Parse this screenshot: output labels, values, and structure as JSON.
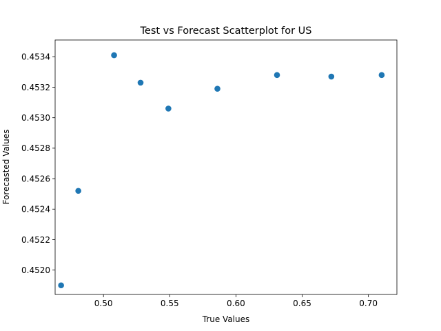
{
  "chart_data": {
    "type": "scatter",
    "title": "Test vs Forecast Scatterplot for US",
    "xlabel": "True Values",
    "ylabel": "Forecasted Values",
    "xlim": [
      0.4635,
      0.7215
    ],
    "ylim": [
      0.45184,
      0.45351
    ],
    "xticks": [
      0.5,
      0.55,
      0.6,
      0.65,
      0.7
    ],
    "xtick_labels": [
      "0.50",
      "0.55",
      "0.60",
      "0.65",
      "0.70"
    ],
    "yticks": [
      0.452,
      0.4522,
      0.4524,
      0.4526,
      0.4528,
      0.453,
      0.4532,
      0.4534
    ],
    "ytick_labels": [
      "0.4520",
      "0.4522",
      "0.4524",
      "0.4526",
      "0.4528",
      "0.4530",
      "0.4532",
      "0.4534"
    ],
    "grid": false,
    "marker_color": "#1f77b4",
    "points": [
      {
        "x": 0.468,
        "y": 0.4519
      },
      {
        "x": 0.481,
        "y": 0.45252
      },
      {
        "x": 0.508,
        "y": 0.45341
      },
      {
        "x": 0.528,
        "y": 0.45323
      },
      {
        "x": 0.549,
        "y": 0.45306
      },
      {
        "x": 0.586,
        "y": 0.45319
      },
      {
        "x": 0.631,
        "y": 0.45328
      },
      {
        "x": 0.672,
        "y": 0.45327
      },
      {
        "x": 0.71,
        "y": 0.45328
      }
    ]
  }
}
